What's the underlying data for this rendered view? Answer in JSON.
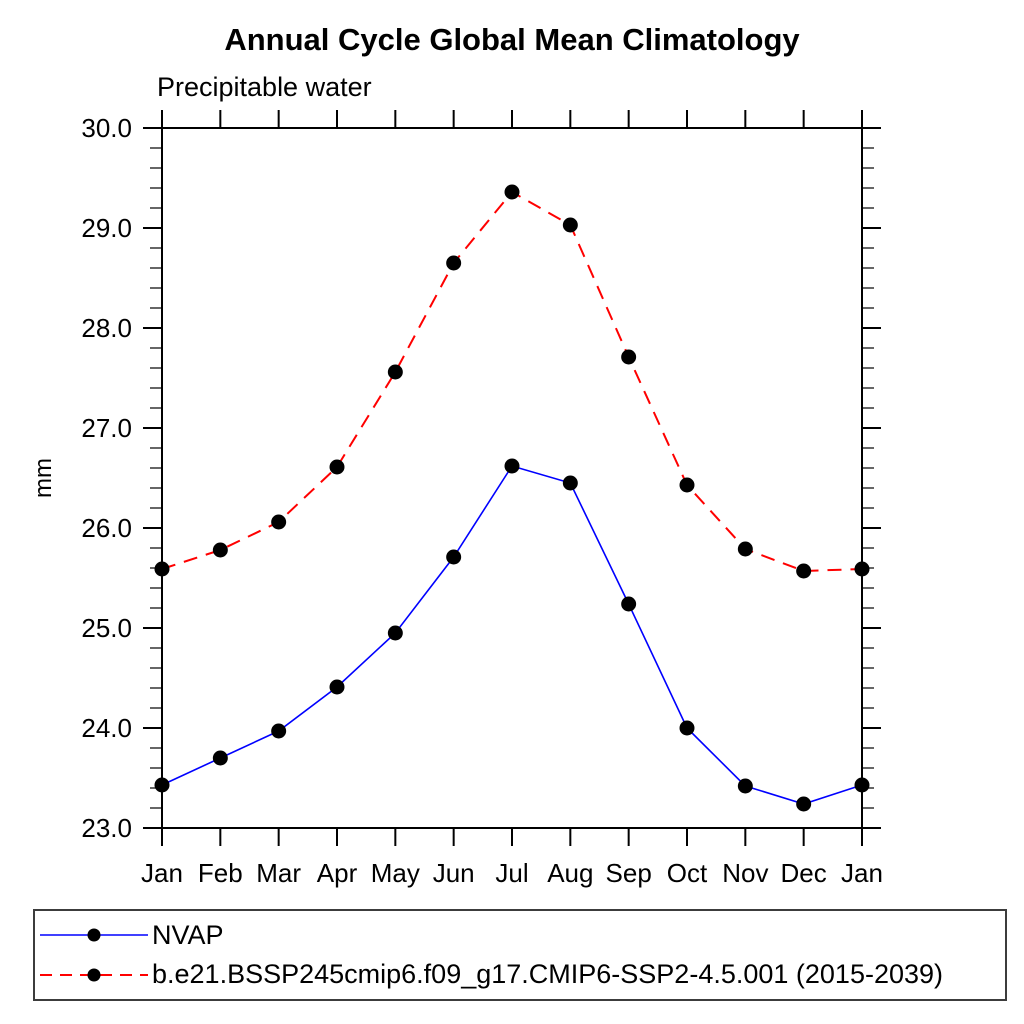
{
  "chart_data": {
    "type": "line",
    "title": "Annual Cycle Global Mean Climatology",
    "subtitle": "Precipitable water",
    "xlabel": "",
    "ylabel": "mm",
    "x_categories": [
      "Jan",
      "Feb",
      "Mar",
      "Apr",
      "May",
      "Jun",
      "Jul",
      "Aug",
      "Sep",
      "Oct",
      "Nov",
      "Dec",
      "Jan"
    ],
    "ylim": [
      23.0,
      30.0
    ],
    "ytick_labels": [
      "23.0",
      "24.0",
      "25.0",
      "26.0",
      "27.0",
      "28.0",
      "29.0",
      "30.0"
    ],
    "yminor_interval": 0.2,
    "grid": false,
    "legend_position": "bottom-left-box",
    "marker_color": "#000000",
    "axis_color": "#000000",
    "series": [
      {
        "name": "NVAP",
        "color": "#0000ff",
        "line_style": "solid",
        "marker": "filled-circle",
        "values": [
          23.43,
          23.7,
          23.97,
          24.41,
          24.95,
          25.71,
          26.62,
          26.45,
          25.24,
          24.0,
          23.42,
          23.24,
          23.43
        ]
      },
      {
        "name": "b.e21.BSSP245cmip6.f09_g17.CMIP6-SSP2-4.5.001 (2015-2039)",
        "color": "#ff0000",
        "line_style": "dashed",
        "marker": "filled-circle",
        "values": [
          25.59,
          25.78,
          26.06,
          26.61,
          27.56,
          28.65,
          29.36,
          29.03,
          27.71,
          26.43,
          25.79,
          25.57,
          25.59
        ]
      }
    ]
  }
}
